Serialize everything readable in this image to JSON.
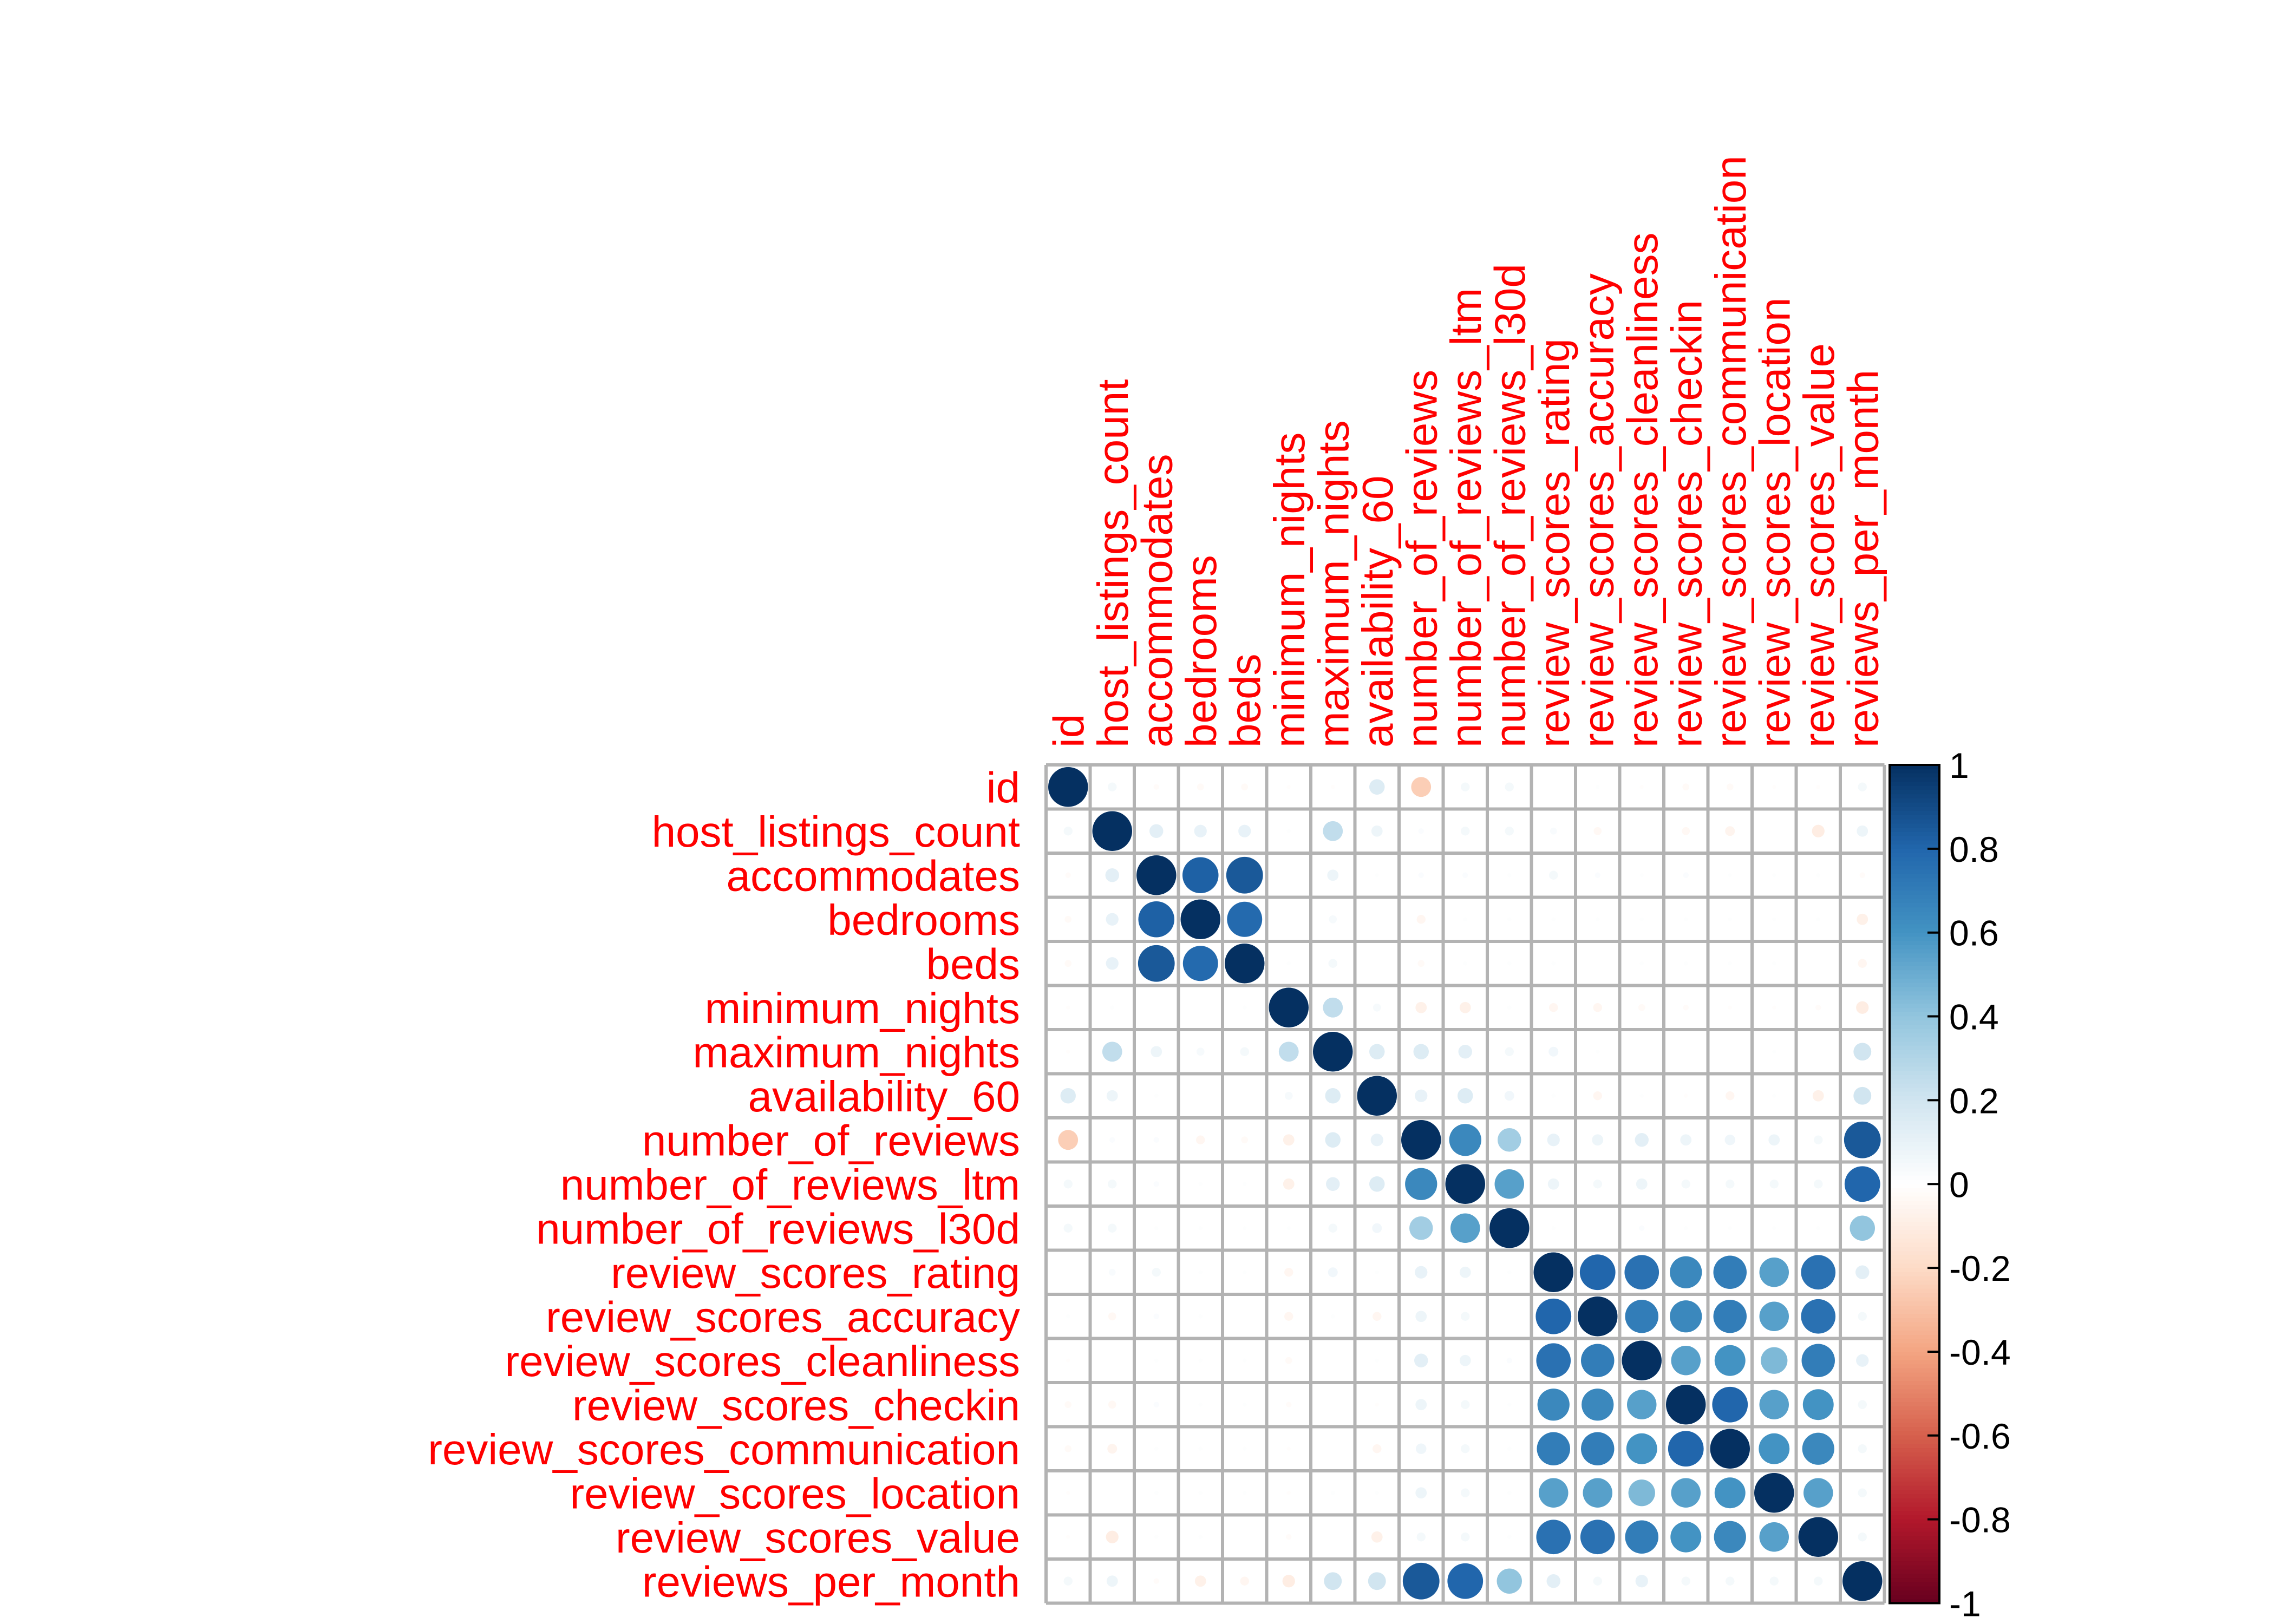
{
  "chart_data": {
    "type": "heatmap",
    "variables": [
      "id",
      "host_listings_count",
      "accommodates",
      "bedrooms",
      "beds",
      "minimum_nights",
      "maximum_nights",
      "availability_60",
      "number_of_reviews",
      "number_of_reviews_ltm",
      "number_of_reviews_l30d",
      "review_scores_rating",
      "review_scores_accuracy",
      "review_scores_cleanliness",
      "review_scores_checkin",
      "review_scores_communication",
      "review_scores_location",
      "review_scores_value",
      "reviews_per_month"
    ],
    "matrix": [
      [
        1.0,
        0.05,
        -0.02,
        -0.03,
        -0.03,
        -0.01,
        -0.01,
        0.15,
        -0.25,
        0.05,
        0.05,
        0.0,
        0.01,
        -0.01,
        -0.03,
        -0.03,
        -0.01,
        -0.01,
        0.05
      ],
      [
        0.05,
        1.0,
        0.12,
        0.1,
        0.1,
        0.01,
        0.25,
        0.08,
        0.02,
        0.05,
        0.05,
        0.03,
        -0.04,
        0.0,
        -0.04,
        -0.06,
        0.0,
        -0.1,
        0.08
      ],
      [
        -0.02,
        0.12,
        1.0,
        0.82,
        0.85,
        0.0,
        0.08,
        0.01,
        0.02,
        0.02,
        0.01,
        0.05,
        0.02,
        0.01,
        0.02,
        0.01,
        0.01,
        0.01,
        -0.02
      ],
      [
        -0.03,
        0.1,
        0.82,
        1.0,
        0.78,
        0.0,
        0.04,
        0.0,
        -0.05,
        0.01,
        0.01,
        0.01,
        0.01,
        0.01,
        0.01,
        0.01,
        0.01,
        0.01,
        -0.08
      ],
      [
        -0.03,
        0.1,
        0.85,
        0.78,
        1.0,
        0.01,
        0.05,
        0.0,
        -0.03,
        0.01,
        0.01,
        0.01,
        0.0,
        0.01,
        0.01,
        0.01,
        0.01,
        0.0,
        -0.05
      ],
      [
        -0.01,
        0.01,
        0.0,
        0.0,
        0.01,
        1.0,
        0.25,
        0.04,
        -0.08,
        -0.08,
        0.01,
        -0.05,
        -0.05,
        -0.03,
        -0.02,
        -0.01,
        -0.01,
        -0.02,
        -0.1
      ],
      [
        -0.01,
        0.25,
        0.08,
        0.04,
        0.05,
        0.25,
        1.0,
        0.15,
        0.15,
        0.12,
        0.05,
        0.06,
        0.01,
        0.0,
        0.0,
        0.0,
        0.01,
        0.0,
        0.2
      ],
      [
        0.15,
        0.08,
        0.01,
        0.0,
        0.0,
        0.04,
        0.15,
        1.0,
        0.1,
        0.15,
        0.06,
        0.01,
        -0.05,
        0.01,
        -0.01,
        -0.05,
        0.01,
        -0.08,
        0.2
      ],
      [
        -0.25,
        0.02,
        0.02,
        -0.05,
        -0.03,
        -0.08,
        0.15,
        0.1,
        1.0,
        0.65,
        0.35,
        0.1,
        0.08,
        0.12,
        0.08,
        0.07,
        0.08,
        0.05,
        0.85
      ],
      [
        0.05,
        0.05,
        0.02,
        0.01,
        0.01,
        -0.08,
        0.12,
        0.15,
        0.65,
        1.0,
        0.55,
        0.08,
        0.05,
        0.08,
        0.05,
        0.05,
        0.05,
        0.05,
        0.8
      ],
      [
        0.05,
        0.05,
        0.01,
        0.01,
        0.01,
        0.01,
        0.05,
        0.06,
        0.35,
        0.55,
        1.0,
        0.01,
        0.0,
        0.02,
        0.01,
        0.01,
        0.01,
        0.01,
        0.4
      ],
      [
        0.0,
        0.03,
        0.05,
        0.01,
        0.01,
        -0.05,
        0.06,
        0.01,
        0.1,
        0.08,
        0.01,
        1.0,
        0.8,
        0.75,
        0.65,
        0.7,
        0.55,
        0.75,
        0.12
      ],
      [
        0.01,
        -0.04,
        0.02,
        0.01,
        0.0,
        -0.05,
        0.01,
        -0.05,
        0.08,
        0.05,
        0.0,
        0.8,
        1.0,
        0.7,
        0.65,
        0.7,
        0.55,
        0.75,
        0.05
      ],
      [
        -0.01,
        0.0,
        0.01,
        0.01,
        0.01,
        -0.03,
        0.0,
        0.01,
        0.12,
        0.08,
        0.02,
        0.75,
        0.7,
        1.0,
        0.55,
        0.6,
        0.45,
        0.7,
        0.1
      ],
      [
        -0.03,
        -0.04,
        0.02,
        0.01,
        0.01,
        -0.02,
        0.0,
        -0.01,
        0.08,
        0.05,
        0.01,
        0.65,
        0.65,
        0.55,
        1.0,
        0.8,
        0.55,
        0.6,
        0.05
      ],
      [
        -0.03,
        -0.06,
        0.01,
        0.01,
        0.01,
        -0.01,
        0.0,
        -0.05,
        0.07,
        0.05,
        0.01,
        0.7,
        0.7,
        0.6,
        0.8,
        1.0,
        0.6,
        0.65,
        0.05
      ],
      [
        -0.01,
        0.0,
        0.01,
        0.01,
        0.01,
        -0.01,
        0.01,
        0.01,
        0.08,
        0.05,
        0.01,
        0.55,
        0.55,
        0.45,
        0.55,
        0.6,
        1.0,
        0.55,
        0.05
      ],
      [
        -0.01,
        -0.1,
        0.01,
        0.01,
        0.0,
        -0.02,
        0.0,
        -0.08,
        0.05,
        0.05,
        0.01,
        0.75,
        0.75,
        0.7,
        0.6,
        0.65,
        0.55,
        1.0,
        0.05
      ],
      [
        0.05,
        0.08,
        -0.02,
        -0.08,
        -0.05,
        -0.1,
        0.2,
        0.2,
        0.85,
        0.8,
        0.4,
        0.12,
        0.05,
        0.1,
        0.05,
        0.05,
        0.05,
        0.05,
        1.0
      ]
    ],
    "colorbar": {
      "ticks": [
        "1",
        "0.8",
        "0.6",
        "0.4",
        "0.2",
        "0",
        "-0.2",
        "-0.4",
        "-0.6",
        "-0.8",
        "-1"
      ],
      "range": [
        -1,
        1
      ],
      "colors": [
        "#67001f",
        "#b2182b",
        "#d6604d",
        "#f4a582",
        "#fddbc7",
        "#ffffff",
        "#d1e5f0",
        "#92c5de",
        "#4393c3",
        "#2166ac",
        "#053061"
      ]
    },
    "grid": true,
    "legend": "right"
  }
}
